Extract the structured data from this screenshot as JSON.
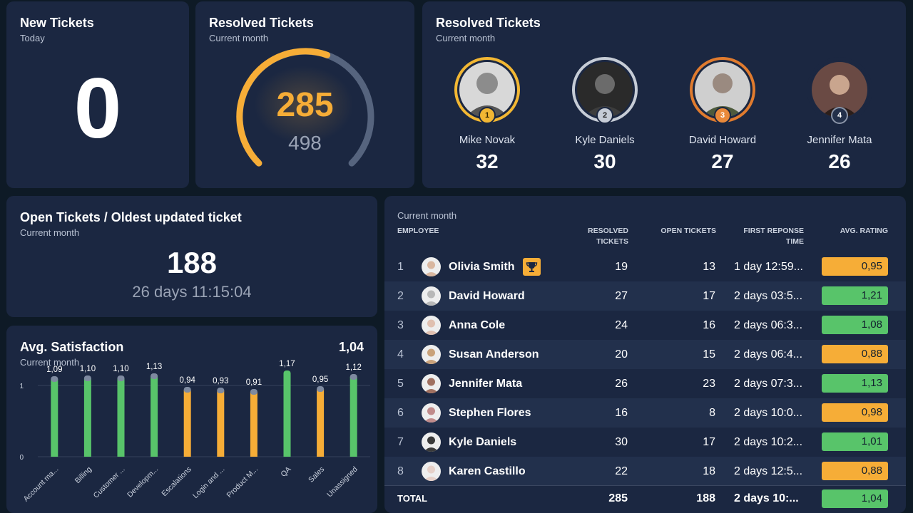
{
  "new_tickets": {
    "title": "New Tickets",
    "subtitle": "Today",
    "value": "0"
  },
  "resolved_gauge": {
    "title": "Resolved Tickets",
    "subtitle": "Current month",
    "value": "285",
    "max": "498",
    "fraction": 0.572
  },
  "leaderboard": {
    "title": "Resolved Tickets",
    "subtitle": "Current month",
    "leaders": [
      {
        "rank": "1",
        "name": "Mike Novak",
        "score": "32",
        "ring": "#f2b733",
        "badge": "#f2b733"
      },
      {
        "rank": "2",
        "name": "Kyle Daniels",
        "score": "30",
        "ring": "#c6ccd6",
        "badge": "#c6ccd6"
      },
      {
        "rank": "3",
        "name": "David Howard",
        "score": "27",
        "ring": "#e07b2e",
        "badge": "#e9893a"
      },
      {
        "rank": "4",
        "name": "Jennifer Mata",
        "score": "26",
        "ring": "#1b2741",
        "badge": "#23304a"
      }
    ]
  },
  "open_tickets": {
    "title": "Open Tickets / Oldest updated ticket",
    "subtitle": "Current month",
    "value": "188",
    "oldest": "26 days 11:15:04"
  },
  "satisfaction": {
    "title": "Avg. Satisfaction",
    "subtitle": "Current month",
    "total": "1,04",
    "chart_data": {
      "type": "bar",
      "title": "Avg. Satisfaction",
      "ylim": [
        0,
        1.2
      ],
      "y_ticks": [
        "0",
        "1"
      ],
      "categories": [
        "Account ma...",
        "Billing",
        "Customer ...",
        "Developm...",
        "Escalations",
        "Login and ...",
        "Product M...",
        "QA",
        "Sales",
        "Unassigned"
      ],
      "values": [
        1.09,
        1.1,
        1.1,
        1.13,
        0.94,
        0.93,
        0.91,
        1.17,
        0.95,
        1.12
      ],
      "labels": [
        "1,09",
        "1,10",
        "1,10",
        "1,13",
        "0,94",
        "0,93",
        "0,91",
        "1,17",
        "0,95",
        "1,12"
      ]
    }
  },
  "table": {
    "subtitle": "Current month",
    "headers": {
      "employee": "EMPLOYEE",
      "resolved_1": "RESOLVED",
      "resolved_2": "TICKETS",
      "open": "OPEN TICKETS",
      "first_1": "FIRST REPONSE",
      "first_2": "TIME",
      "rating": "AVG. RATING"
    },
    "rows": [
      {
        "rank": "1",
        "name": "Olivia Smith",
        "resolved": "19",
        "open": "13",
        "response": "1 day 12:59...",
        "rating": "0,95",
        "color": "#f6ad37"
      },
      {
        "rank": "2",
        "name": "David Howard",
        "resolved": "27",
        "open": "17",
        "response": "2 days 03:5...",
        "rating": "1,21",
        "color": "#58c46a"
      },
      {
        "rank": "3",
        "name": "Anna Cole",
        "resolved": "24",
        "open": "16",
        "response": "2 days 06:3...",
        "rating": "1,08",
        "color": "#58c46a"
      },
      {
        "rank": "4",
        "name": "Susan Anderson",
        "resolved": "20",
        "open": "15",
        "response": "2 days 06:4...",
        "rating": "0,88",
        "color": "#f6ad37"
      },
      {
        "rank": "5",
        "name": "Jennifer Mata",
        "resolved": "26",
        "open": "23",
        "response": "2 days 07:3...",
        "rating": "1,13",
        "color": "#58c46a"
      },
      {
        "rank": "6",
        "name": "Stephen Flores",
        "resolved": "16",
        "open": "8",
        "response": "2 days 10:0...",
        "rating": "0,98",
        "color": "#f6ad37"
      },
      {
        "rank": "7",
        "name": "Kyle Daniels",
        "resolved": "30",
        "open": "17",
        "response": "2 days 10:2...",
        "rating": "1,01",
        "color": "#58c46a"
      },
      {
        "rank": "8",
        "name": "Karen Castillo",
        "resolved": "22",
        "open": "18",
        "response": "2 days 12:5...",
        "rating": "0,88",
        "color": "#f6ad37"
      }
    ],
    "total": {
      "label": "TOTAL",
      "resolved": "285",
      "open": "188",
      "response": "2 days 10:...",
      "rating": "1,04",
      "color": "#58c46a"
    }
  }
}
